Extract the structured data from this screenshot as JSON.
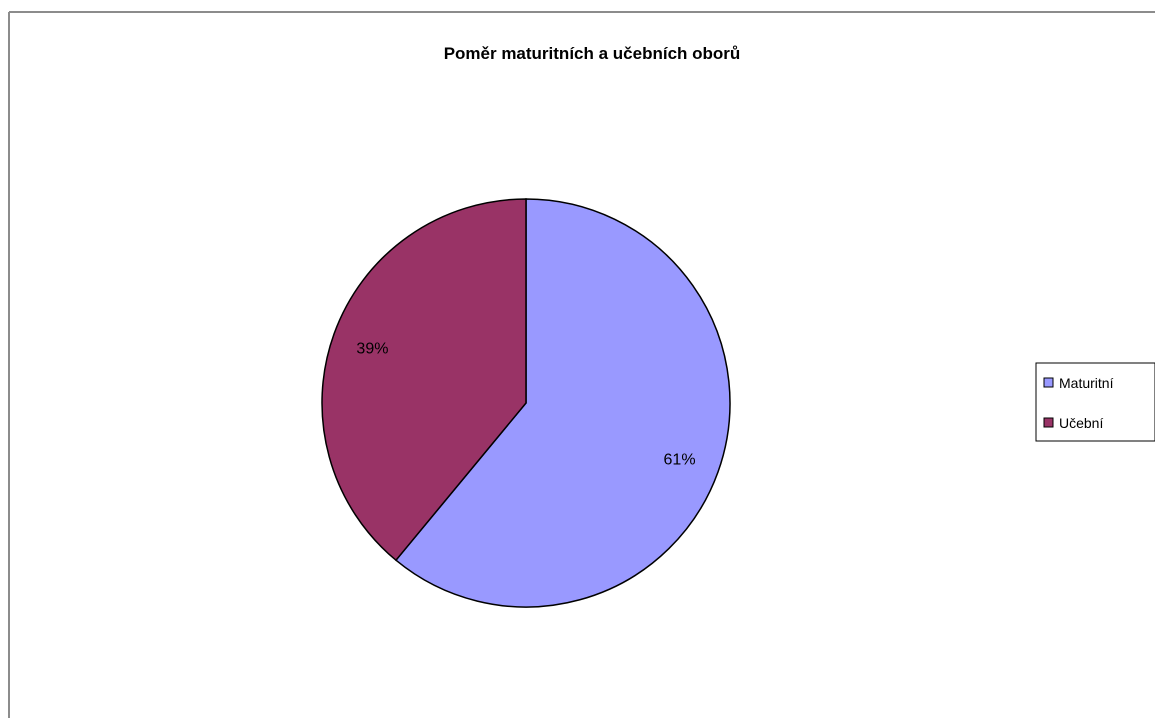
{
  "chart_data": {
    "type": "pie",
    "title": "Poměr maturitních a učebních oborů",
    "slices": [
      {
        "label": "Maturitní",
        "value": 61,
        "value_label": "61%",
        "color": "#9999ff"
      },
      {
        "label": "Učební",
        "value": 39,
        "value_label": "39%",
        "color": "#993366"
      }
    ],
    "legend": {
      "placement": "right"
    },
    "start_angle_deg": 0,
    "direction": "clockwise"
  }
}
